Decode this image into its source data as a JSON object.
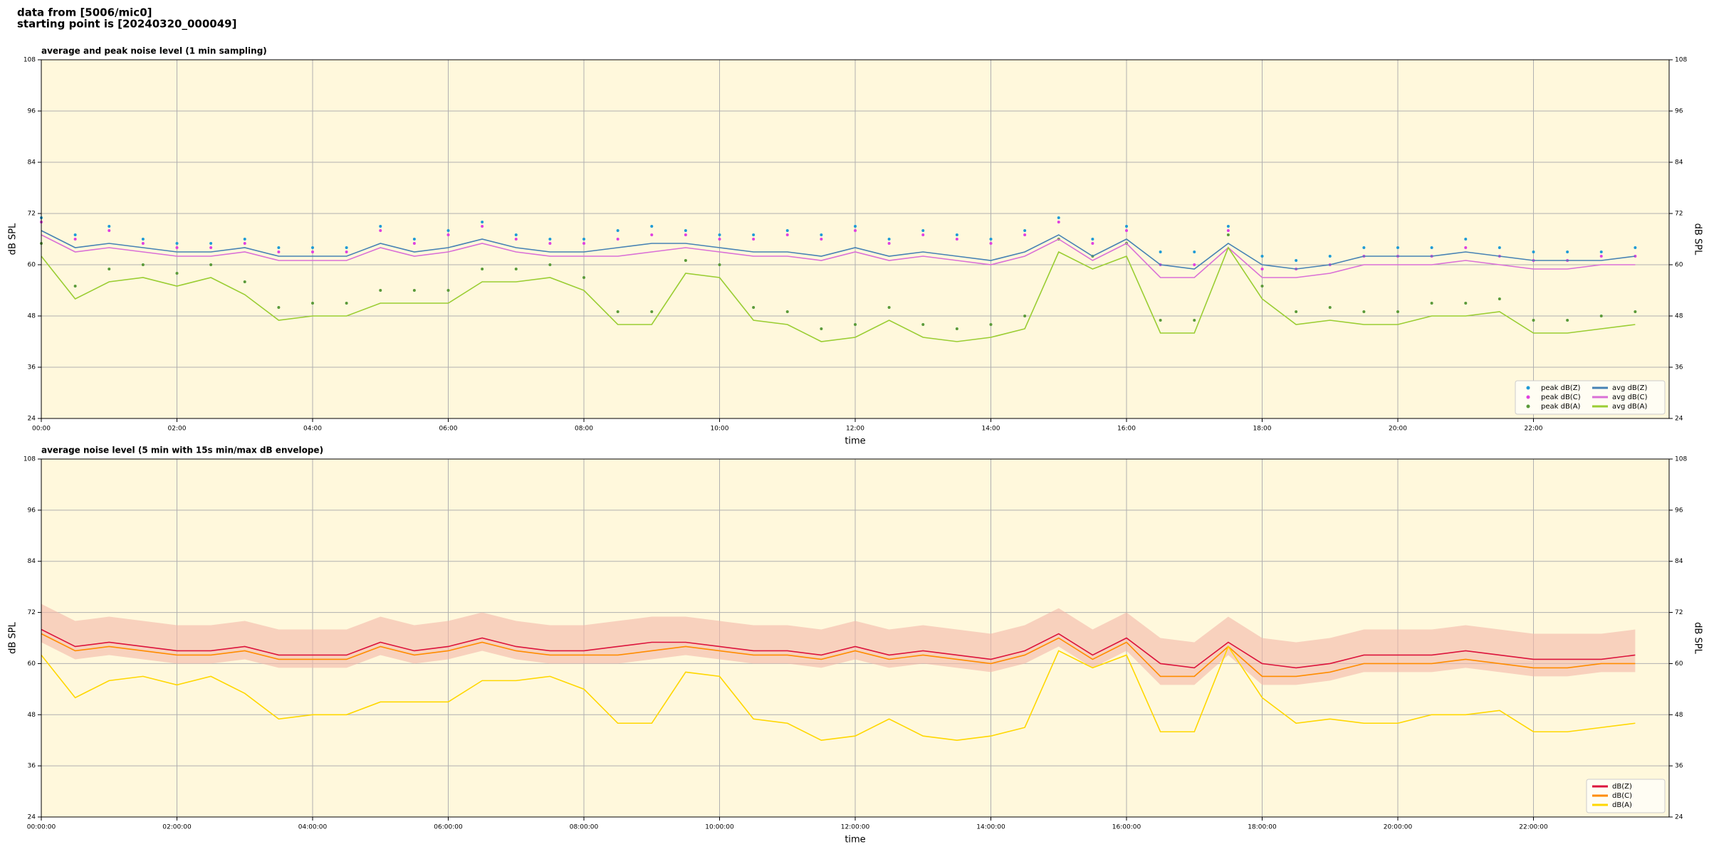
{
  "header": {
    "lines": [
      "data from [5006/mic0]",
      "starting point is [20240320_000049]"
    ]
  },
  "chart_data": [
    {
      "type": "line",
      "title": "average and peak noise level (1 min sampling)",
      "xlabel": "time",
      "ylabel": "dB SPL",
      "background": "#fff8dc",
      "grid": true,
      "legend": "lower right",
      "legend_columns": 2,
      "xlim": [
        "00:00",
        "24:00"
      ],
      "xticks": [
        "00:00",
        "02:00",
        "04:00",
        "06:00",
        "08:00",
        "10:00",
        "12:00",
        "14:00",
        "16:00",
        "18:00",
        "20:00",
        "22:00"
      ],
      "ylim": [
        24,
        108
      ],
      "yticks": [
        24,
        36,
        48,
        60,
        72,
        84,
        96,
        108
      ],
      "x": [
        "00:00",
        "00:30",
        "01:00",
        "01:30",
        "02:00",
        "02:30",
        "03:00",
        "03:30",
        "04:00",
        "04:30",
        "05:00",
        "05:30",
        "06:00",
        "06:30",
        "07:00",
        "07:30",
        "08:00",
        "08:30",
        "09:00",
        "09:30",
        "10:00",
        "10:30",
        "11:00",
        "11:30",
        "12:00",
        "12:30",
        "13:00",
        "13:30",
        "14:00",
        "14:30",
        "15:00",
        "15:30",
        "16:00",
        "16:30",
        "17:00",
        "17:30",
        "18:00",
        "18:30",
        "19:00",
        "19:30",
        "20:00",
        "20:30",
        "21:00",
        "21:30",
        "22:00",
        "22:30",
        "23:00",
        "23:30"
      ],
      "series": [
        {
          "name": "peak dB(Z)",
          "type": "scatter",
          "color": "#1f9bd6",
          "values": [
            71,
            67,
            69,
            66,
            65,
            65,
            66,
            64,
            64,
            64,
            69,
            66,
            68,
            70,
            67,
            66,
            66,
            68,
            69,
            68,
            67,
            67,
            68,
            67,
            69,
            66,
            68,
            67,
            66,
            68,
            71,
            66,
            69,
            63,
            63,
            69,
            62,
            61,
            62,
            64,
            64,
            64,
            66,
            64,
            63,
            63,
            63,
            64
          ]
        },
        {
          "name": "peak dB(C)",
          "type": "scatter",
          "color": "#e040e0",
          "values": [
            70,
            66,
            68,
            65,
            64,
            64,
            65,
            63,
            63,
            63,
            68,
            65,
            67,
            69,
            66,
            65,
            65,
            66,
            67,
            67,
            66,
            66,
            67,
            66,
            68,
            65,
            67,
            66,
            65,
            67,
            70,
            65,
            68,
            60,
            60,
            68,
            59,
            59,
            60,
            62,
            62,
            62,
            64,
            62,
            61,
            61,
            62,
            62
          ]
        },
        {
          "name": "peak dB(A)",
          "type": "scatter",
          "color": "#5a9a3a",
          "values": [
            65,
            55,
            59,
            60,
            58,
            60,
            56,
            50,
            51,
            51,
            54,
            54,
            54,
            59,
            59,
            60,
            57,
            49,
            49,
            61,
            60,
            50,
            49,
            45,
            46,
            50,
            46,
            45,
            46,
            48,
            66,
            62,
            65,
            47,
            47,
            67,
            55,
            49,
            50,
            49,
            49,
            51,
            51,
            52,
            47,
            47,
            48,
            49
          ]
        },
        {
          "name": "avg dB(Z)",
          "type": "line",
          "color": "#4682b4",
          "values": [
            68,
            64,
            65,
            64,
            63,
            63,
            64,
            62,
            62,
            62,
            65,
            63,
            64,
            66,
            64,
            63,
            63,
            64,
            65,
            65,
            64,
            63,
            63,
            62,
            64,
            62,
            63,
            62,
            61,
            63,
            67,
            62,
            66,
            60,
            59,
            65,
            60,
            59,
            60,
            62,
            62,
            62,
            63,
            62,
            61,
            61,
            61,
            62
          ]
        },
        {
          "name": "avg dB(C)",
          "type": "line",
          "color": "#da70d6",
          "values": [
            67,
            63,
            64,
            63,
            62,
            62,
            63,
            61,
            61,
            61,
            64,
            62,
            63,
            65,
            63,
            62,
            62,
            62,
            63,
            64,
            63,
            62,
            62,
            61,
            63,
            61,
            62,
            61,
            60,
            62,
            66,
            61,
            65,
            57,
            57,
            64,
            57,
            57,
            58,
            60,
            60,
            60,
            61,
            60,
            59,
            59,
            60,
            60
          ]
        },
        {
          "name": "avg dB(A)",
          "type": "line",
          "color": "#9acd32",
          "values": [
            62,
            52,
            56,
            57,
            55,
            57,
            53,
            47,
            48,
            48,
            51,
            51,
            51,
            56,
            56,
            57,
            54,
            46,
            46,
            58,
            57,
            47,
            46,
            42,
            43,
            47,
            43,
            42,
            43,
            45,
            63,
            59,
            62,
            44,
            44,
            64,
            52,
            46,
            47,
            46,
            46,
            48,
            48,
            49,
            44,
            44,
            45,
            46
          ]
        }
      ]
    },
    {
      "type": "line",
      "title": "average noise level (5 min with 15s min/max dB envelope)",
      "xlabel": "time",
      "ylabel": "dB SPL",
      "background": "#fff8dc",
      "grid": true,
      "legend": "lower right",
      "legend_columns": 1,
      "xlim": [
        "00:00",
        "24:00"
      ],
      "xticks": [
        {
          "value": "00:00",
          "label": "00:00:00"
        },
        {
          "value": "02:00",
          "label": "02:00:00"
        },
        {
          "value": "04:00",
          "label": "04:00:00"
        },
        {
          "value": "06:00",
          "label": "06:00:00"
        },
        {
          "value": "08:00",
          "label": "08:00:00"
        },
        {
          "value": "10:00",
          "label": "10:00:00"
        },
        {
          "value": "12:00",
          "label": "12:00:00"
        },
        {
          "value": "14:00",
          "label": "14:00:00"
        },
        {
          "value": "16:00",
          "label": "16:00:00"
        },
        {
          "value": "18:00",
          "label": "18:00:00"
        },
        {
          "value": "20:00",
          "label": "20:00:00"
        },
        {
          "value": "22:00",
          "label": "22:00:00"
        }
      ],
      "ylim": [
        24,
        108
      ],
      "yticks": [
        24,
        36,
        48,
        60,
        72,
        84,
        96,
        108
      ],
      "x": [
        "00:00",
        "00:30",
        "01:00",
        "01:30",
        "02:00",
        "02:30",
        "03:00",
        "03:30",
        "04:00",
        "04:30",
        "05:00",
        "05:30",
        "06:00",
        "06:30",
        "07:00",
        "07:30",
        "08:00",
        "08:30",
        "09:00",
        "09:30",
        "10:00",
        "10:30",
        "11:00",
        "11:30",
        "12:00",
        "12:30",
        "13:00",
        "13:30",
        "14:00",
        "14:30",
        "15:00",
        "15:30",
        "16:00",
        "16:30",
        "17:00",
        "17:30",
        "18:00",
        "18:30",
        "19:00",
        "19:30",
        "20:00",
        "20:30",
        "21:00",
        "21:30",
        "22:00",
        "22:30",
        "23:00",
        "23:30"
      ],
      "envelope": {
        "color": "#f4b8a8",
        "max": [
          74,
          70,
          71,
          70,
          69,
          69,
          70,
          68,
          68,
          68,
          71,
          69,
          70,
          72,
          70,
          69,
          69,
          70,
          71,
          71,
          70,
          69,
          69,
          68,
          70,
          68,
          69,
          68,
          67,
          69,
          73,
          68,
          72,
          66,
          65,
          71,
          66,
          65,
          66,
          68,
          68,
          68,
          69,
          68,
          67,
          67,
          67,
          68
        ],
        "min": [
          65,
          61,
          62,
          61,
          60,
          60,
          61,
          59,
          59,
          59,
          62,
          60,
          61,
          63,
          61,
          60,
          60,
          60,
          61,
          62,
          61,
          60,
          60,
          59,
          61,
          59,
          60,
          59,
          58,
          60,
          64,
          59,
          63,
          55,
          55,
          62,
          55,
          55,
          56,
          58,
          58,
          58,
          59,
          58,
          57,
          57,
          58,
          58
        ]
      },
      "series": [
        {
          "name": "dB(Z)",
          "type": "line",
          "color": "#dc143c",
          "values": [
            68,
            64,
            65,
            64,
            63,
            63,
            64,
            62,
            62,
            62,
            65,
            63,
            64,
            66,
            64,
            63,
            63,
            64,
            65,
            65,
            64,
            63,
            63,
            62,
            64,
            62,
            63,
            62,
            61,
            63,
            67,
            62,
            66,
            60,
            59,
            65,
            60,
            59,
            60,
            62,
            62,
            62,
            63,
            62,
            61,
            61,
            61,
            62
          ]
        },
        {
          "name": "dB(C)",
          "type": "line",
          "color": "#ff8c00",
          "values": [
            67,
            63,
            64,
            63,
            62,
            62,
            63,
            61,
            61,
            61,
            64,
            62,
            63,
            65,
            63,
            62,
            62,
            62,
            63,
            64,
            63,
            62,
            62,
            61,
            63,
            61,
            62,
            61,
            60,
            62,
            66,
            61,
            65,
            57,
            57,
            64,
            57,
            57,
            58,
            60,
            60,
            60,
            61,
            60,
            59,
            59,
            60,
            60
          ]
        },
        {
          "name": "dB(A)",
          "type": "line",
          "color": "#ffd700",
          "values": [
            62,
            52,
            56,
            57,
            55,
            57,
            53,
            47,
            48,
            48,
            51,
            51,
            51,
            56,
            56,
            57,
            54,
            46,
            46,
            58,
            57,
            47,
            46,
            42,
            43,
            47,
            43,
            42,
            43,
            45,
            63,
            59,
            62,
            44,
            44,
            64,
            52,
            46,
            47,
            46,
            46,
            48,
            48,
            49,
            44,
            44,
            45,
            46
          ]
        }
      ]
    }
  ]
}
